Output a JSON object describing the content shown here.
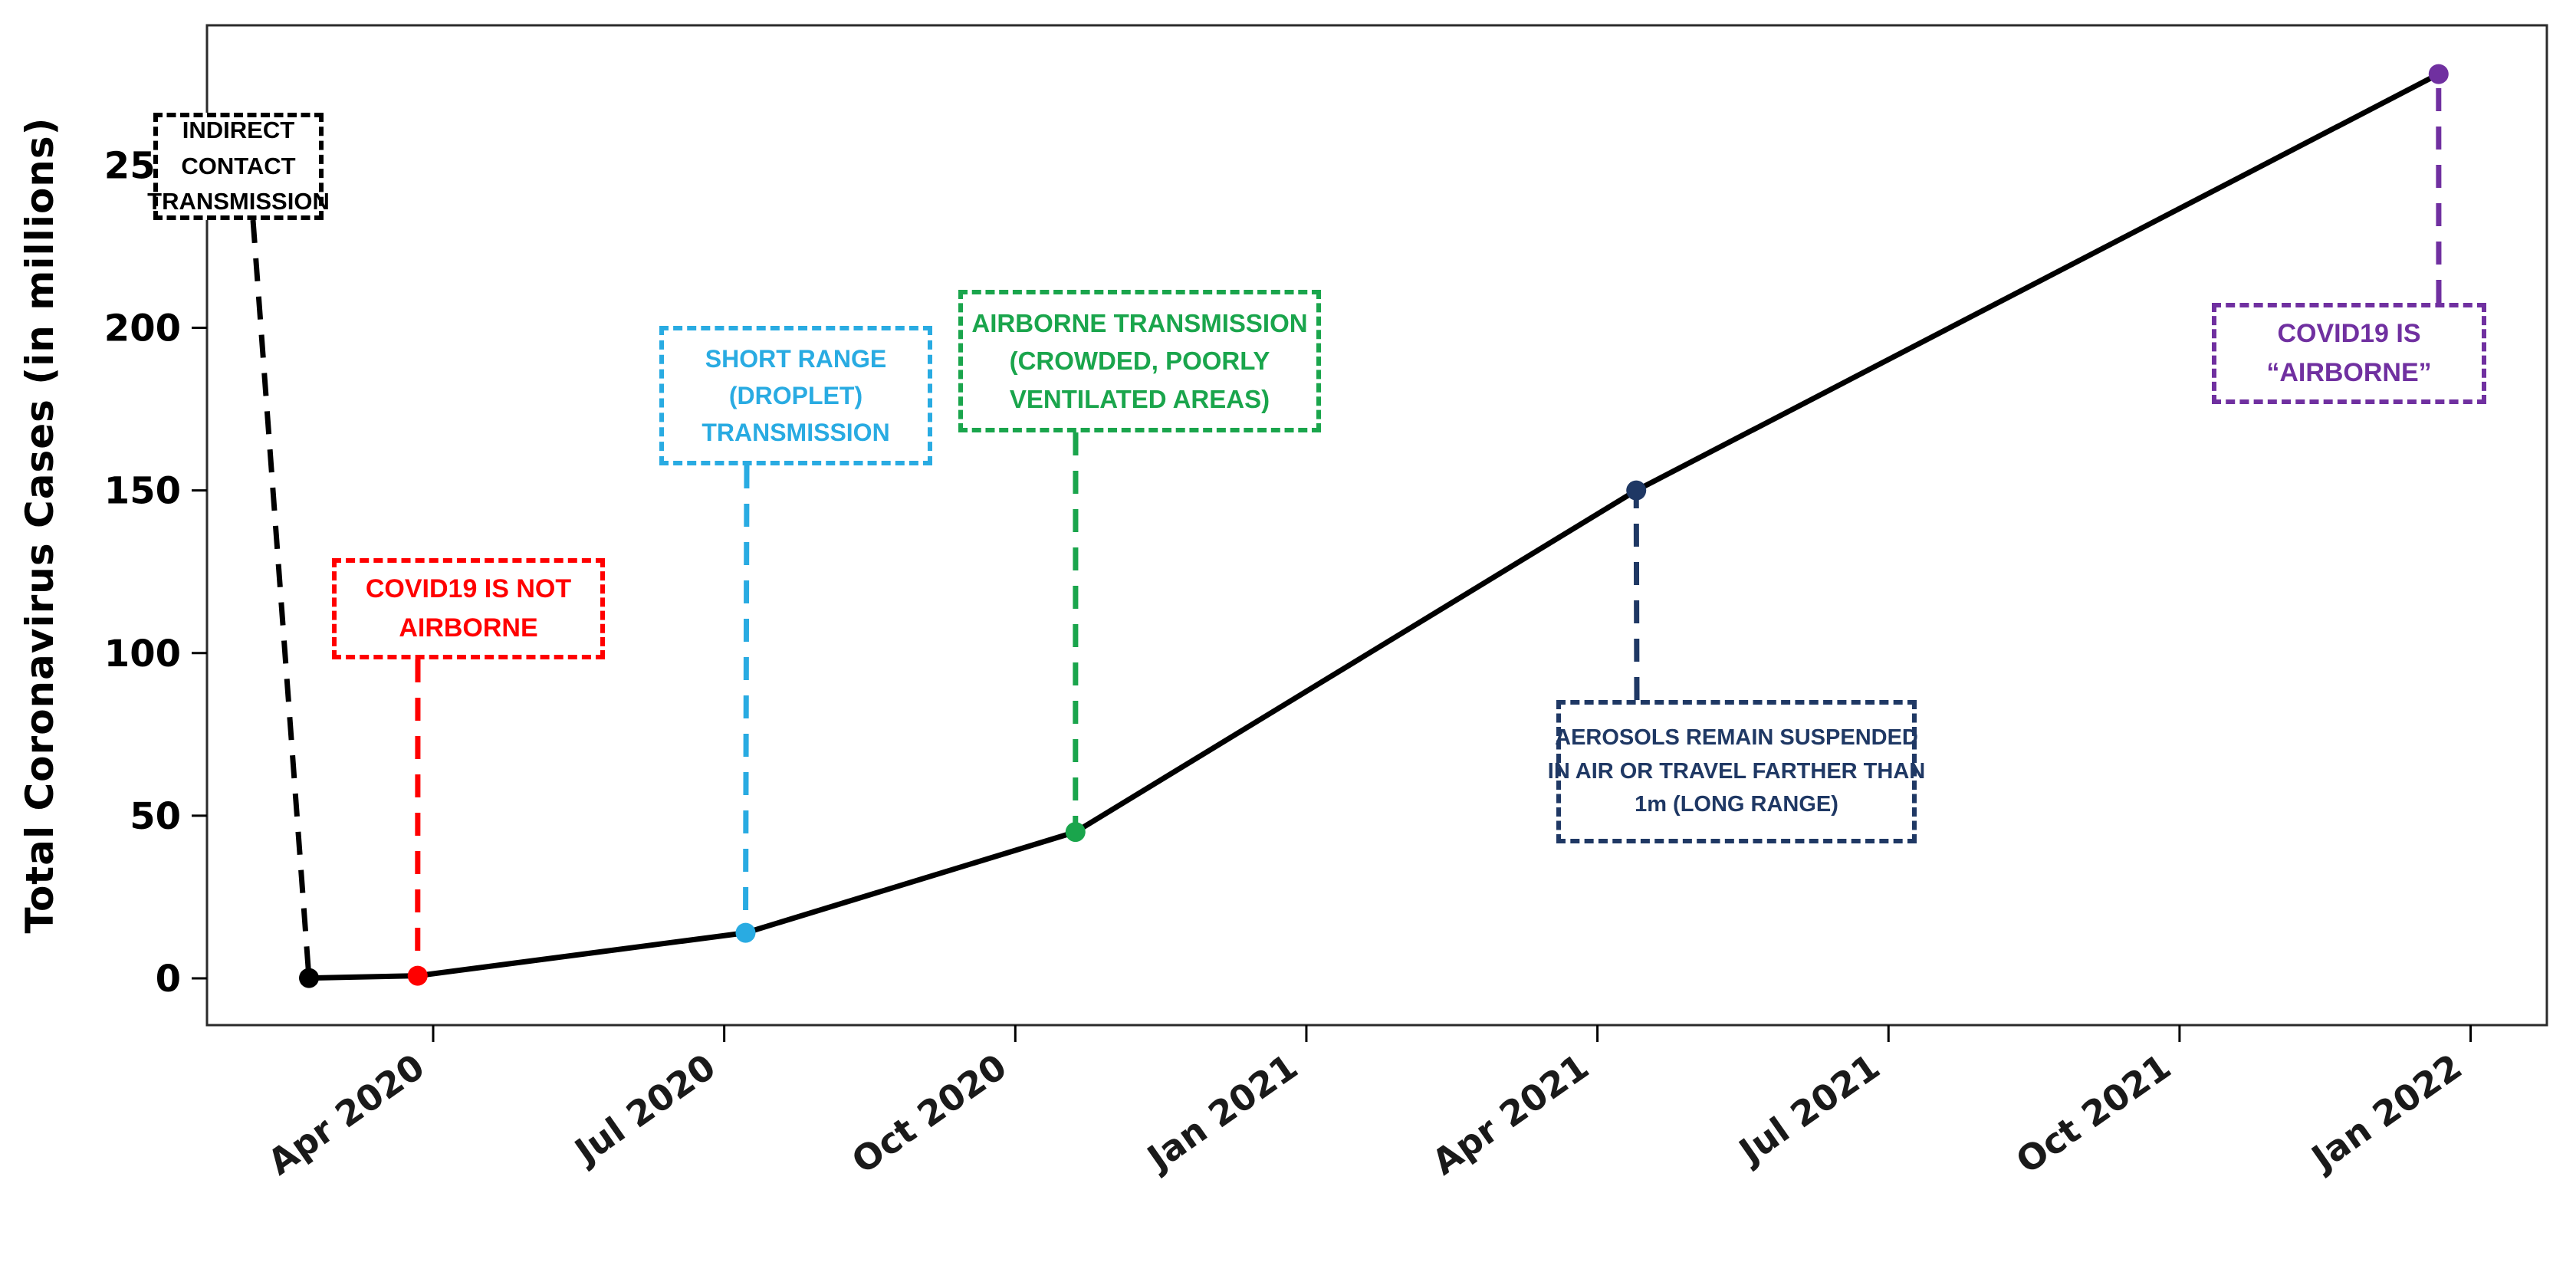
{
  "figure": {
    "ylabel": "Total Coronavirus Cases (in millions)"
  },
  "chart_data": {
    "type": "line",
    "title": "",
    "xlabel": "",
    "ylabel": "Total Coronavirus Cases (in millions)",
    "grid": false,
    "legend": "none",
    "line_color": "#000000",
    "x_tick_labels": [
      "Apr 2020",
      "Jul 2020",
      "Oct 2020",
      "Jan 2021",
      "Apr 2021",
      "Jul 2021",
      "Oct 2021",
      "Jan 2022"
    ],
    "x_tick_month_offsets": [
      0,
      3,
      6,
      9,
      12,
      15,
      18,
      21
    ],
    "y_ticks": [
      0,
      50,
      100,
      150,
      200,
      250
    ],
    "ylim": [
      -14,
      293
    ],
    "xlim_month_offsets": [
      -2.33,
      21.8
    ],
    "points": [
      {
        "id": "indirect-contact",
        "date": "Feb 2020",
        "month_offset": -1.28,
        "value_millions": 0.1,
        "color": "#000000",
        "label_lines": [
          "INDIRECT",
          "CONTACT",
          "TRANSMISSION"
        ]
      },
      {
        "id": "not-airborne",
        "date": "Mar 2020",
        "month_offset": -0.16,
        "value_millions": 0.8,
        "color": "#ff0000",
        "label_lines": [
          "COVID19 IS NOT",
          "AIRBORNE"
        ]
      },
      {
        "id": "short-range-droplet",
        "date": "Jul 2020",
        "month_offset": 3.22,
        "value_millions": 14,
        "color": "#29abe2",
        "label_lines": [
          "SHORT RANGE",
          "(DROPLET)",
          "TRANSMISSION"
        ]
      },
      {
        "id": "airborne-crowded",
        "date": "Oct 2020",
        "month_offset": 6.62,
        "value_millions": 45,
        "color": "#1aa54c",
        "label_lines": [
          "AIRBORNE TRANSMISSION",
          "(CROWDED, POORLY",
          "VENTILATED AREAS)"
        ]
      },
      {
        "id": "aerosols-long-range",
        "date": "Apr 2021",
        "month_offset": 12.4,
        "value_millions": 150,
        "color": "#1f3864",
        "label_lines": [
          "AEROSOLS REMAIN SUSPENDED",
          "IN AIR OR TRAVEL FARTHER THAN",
          "1m (LONG RANGE)"
        ]
      },
      {
        "id": "covid19-airborne",
        "date": "Dec 2021",
        "month_offset": 20.67,
        "value_millions": 278,
        "color": "#7030a0",
        "label_lines": [
          "COVID19 IS",
          "“AIRBORNE”"
        ]
      }
    ]
  }
}
